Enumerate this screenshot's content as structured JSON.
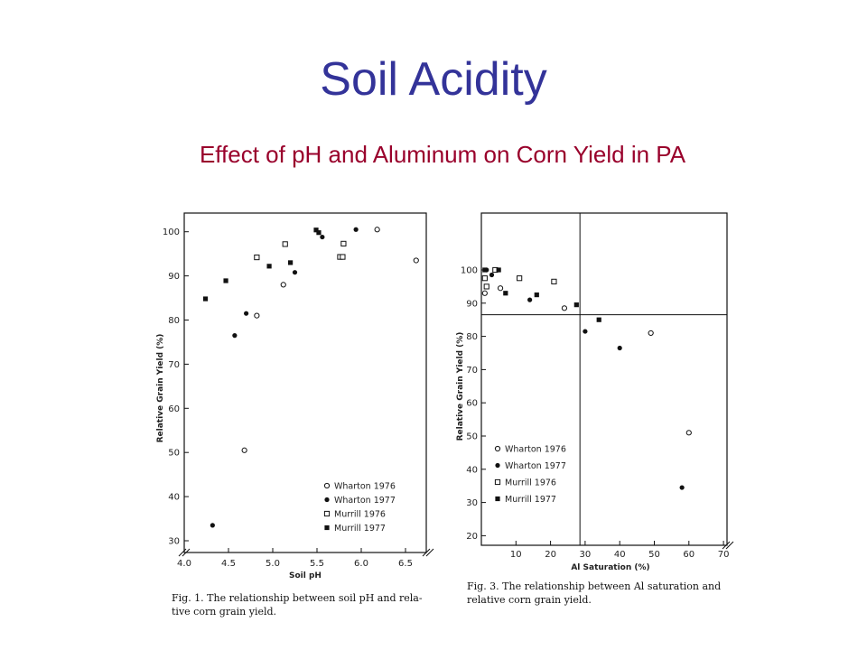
{
  "slide": {
    "title": "Soil Acidity",
    "subtitle": "Effect of pH and Aluminum on Corn Yield in PA",
    "colors": {
      "title": "#333399",
      "subtitle": "#99002b"
    }
  },
  "chart_data": [
    {
      "type": "scatter",
      "xlabel": "Soil pH",
      "ylabel": "Relative Grain Yield (%)",
      "xlim": [
        4.0,
        6.7
      ],
      "ylim": [
        30,
        100
      ],
      "xticks": [
        "4.0",
        "4.5",
        "5.0",
        "5.5",
        "6.0",
        "6.5"
      ],
      "xtick_values": [
        4.0,
        4.5,
        5.0,
        5.5,
        6.0,
        6.5
      ],
      "yticks": [
        "100",
        "90",
        "80",
        "70",
        "60",
        "50",
        "40",
        "30"
      ],
      "ytick_values": [
        100,
        90,
        80,
        70,
        60,
        50,
        40,
        30
      ],
      "caption_line1": "Fig. 1. The relationship between soil pH and rela-",
      "caption_line2": "tive corn grain yield.",
      "legend_position": "bottom-right",
      "series": [
        {
          "name": "Wharton 1976",
          "marker": "open-circle",
          "points": [
            [
              4.68,
              50.5
            ],
            [
              4.82,
              81
            ],
            [
              5.12,
              88
            ],
            [
              6.18,
              100.5
            ],
            [
              6.62,
              93.5
            ]
          ]
        },
        {
          "name": "Wharton 1977",
          "marker": "filled-circle",
          "points": [
            [
              4.32,
              33.5
            ],
            [
              4.57,
              76.5
            ],
            [
              4.7,
              81.5
            ],
            [
              5.25,
              90.8
            ],
            [
              5.56,
              98.8
            ],
            [
              5.94,
              100.5
            ]
          ]
        },
        {
          "name": "Murrill 1976",
          "marker": "open-square",
          "points": [
            [
              4.82,
              94.2
            ],
            [
              5.14,
              97.2
            ],
            [
              5.76,
              94.3
            ],
            [
              5.79,
              94.3
            ],
            [
              5.8,
              97.3
            ]
          ]
        },
        {
          "name": "Murrill 1977",
          "marker": "filled-square",
          "points": [
            [
              4.24,
              84.8
            ],
            [
              4.47,
              88.9
            ],
            [
              4.96,
              92.2
            ],
            [
              5.2,
              93.0
            ],
            [
              5.49,
              100.4
            ],
            [
              5.52,
              99.8
            ]
          ]
        }
      ]
    },
    {
      "type": "scatter",
      "xlabel": "Al Saturation (%)",
      "ylabel": "Relative Grain Yield (%)",
      "xlim": [
        0,
        72
      ],
      "ylim": [
        20,
        100
      ],
      "xticks": [
        "10",
        "20",
        "30",
        "40",
        "50",
        "60",
        "70"
      ],
      "xtick_values": [
        10,
        20,
        30,
        40,
        50,
        60,
        70
      ],
      "yticks": [
        "100",
        "90",
        "80",
        "70",
        "60",
        "50",
        "40",
        "30",
        "20"
      ],
      "ytick_values": [
        100,
        90,
        80,
        70,
        60,
        50,
        40,
        30,
        20
      ],
      "reference_lines": {
        "x": 28.5,
        "y": 86.5
      },
      "caption_line1": "Fig. 3. The relationship between Al saturation and",
      "caption_line2": "relative corn grain yield.",
      "legend_position": "bottom-left",
      "series": [
        {
          "name": "Wharton 1976",
          "marker": "open-circle",
          "points": [
            [
              1,
              93
            ],
            [
              5.5,
              94.5
            ],
            [
              24,
              88.5
            ],
            [
              49,
              81
            ],
            [
              60,
              51
            ]
          ]
        },
        {
          "name": "Wharton 1977",
          "marker": "filled-circle",
          "points": [
            [
              1.5,
              100
            ],
            [
              3,
              98.5
            ],
            [
              14,
              91
            ],
            [
              30,
              81.5
            ],
            [
              40,
              76.5
            ],
            [
              58,
              34.5
            ]
          ]
        },
        {
          "name": "Murrill 1976",
          "marker": "open-square",
          "points": [
            [
              1,
              97.5
            ],
            [
              1.5,
              95
            ],
            [
              4,
              100
            ],
            [
              11,
              97.5
            ],
            [
              21,
              96.5
            ]
          ]
        },
        {
          "name": "Murrill 1977",
          "marker": "filled-square",
          "points": [
            [
              1,
              100
            ],
            [
              5,
              100
            ],
            [
              7,
              93
            ],
            [
              16,
              92.5
            ],
            [
              27.5,
              89.5
            ],
            [
              34,
              85
            ]
          ]
        }
      ]
    }
  ]
}
